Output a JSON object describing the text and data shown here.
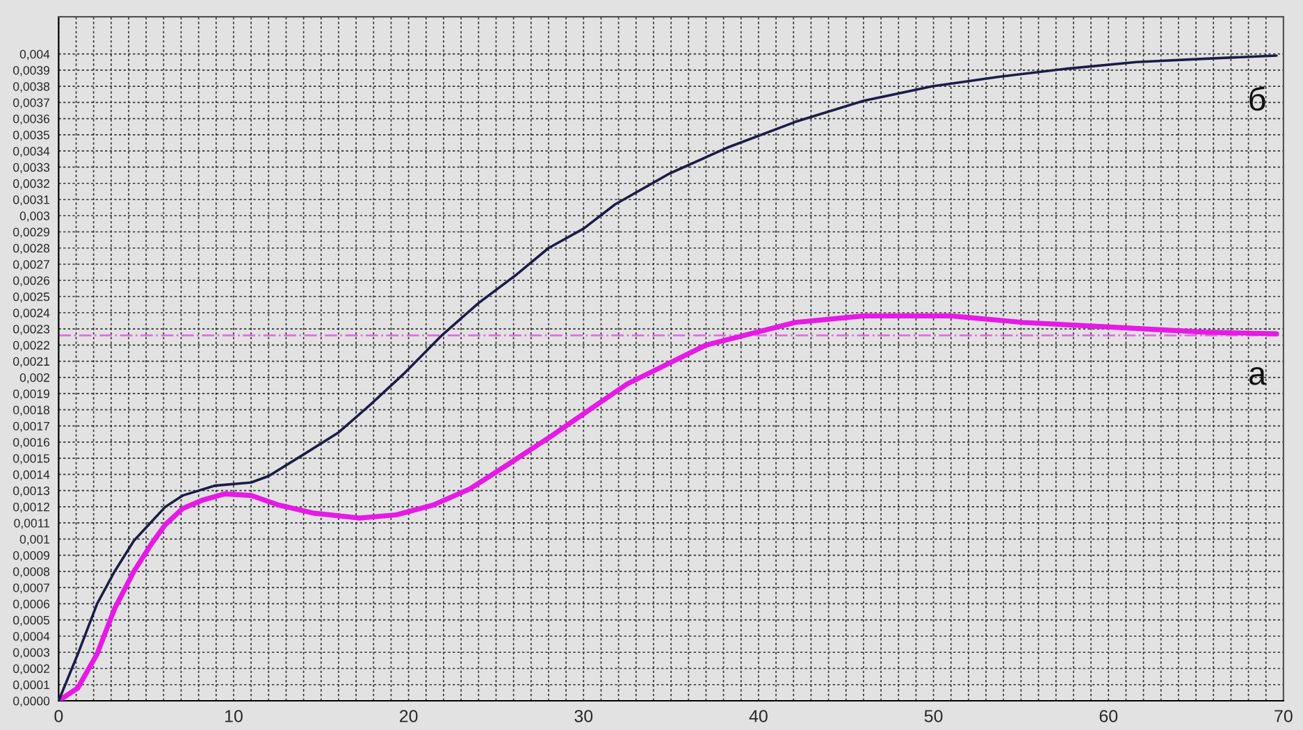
{
  "chart_data": {
    "type": "line",
    "xlim": [
      0,
      70
    ],
    "ylim": [
      0,
      0.00423
    ],
    "xticks": [
      0,
      {
        "value": 1,
        "label": null
      },
      {
        "value": 2,
        "label": null
      },
      {
        "value": 3,
        "label": null
      },
      {
        "value": 4,
        "label": null
      },
      {
        "value": 5,
        "label": null
      },
      {
        "value": 6,
        "label": null
      },
      {
        "value": 7,
        "label": null
      },
      {
        "value": 8,
        "label": null
      },
      {
        "value": 9,
        "label": null
      },
      10,
      {
        "value": 11,
        "label": null
      },
      {
        "value": 12,
        "label": null
      },
      {
        "value": 13,
        "label": null
      },
      {
        "value": 14,
        "label": null
      },
      {
        "value": 15,
        "label": null
      },
      {
        "value": 16,
        "label": null
      },
      {
        "value": 17,
        "label": null
      },
      {
        "value": 18,
        "label": null
      },
      {
        "value": 19,
        "label": null
      },
      20,
      {
        "value": 21,
        "label": null
      },
      {
        "value": 22,
        "label": null
      },
      {
        "value": 23,
        "label": null
      },
      {
        "value": 24,
        "label": null
      },
      {
        "value": 25,
        "label": null
      },
      {
        "value": 26,
        "label": null
      },
      {
        "value": 27,
        "label": null
      },
      {
        "value": 28,
        "label": null
      },
      {
        "value": 29,
        "label": null
      },
      30,
      {
        "value": 31,
        "label": null
      },
      {
        "value": 32,
        "label": null
      },
      {
        "value": 33,
        "label": null
      },
      {
        "value": 34,
        "label": null
      },
      {
        "value": 35,
        "label": null
      },
      {
        "value": 36,
        "label": null
      },
      {
        "value": 37,
        "label": null
      },
      {
        "value": 38,
        "label": null
      },
      {
        "value": 39,
        "label": null
      },
      40,
      {
        "value": 41,
        "label": null
      },
      {
        "value": 42,
        "label": null
      },
      {
        "value": 43,
        "label": null
      },
      {
        "value": 44,
        "label": null
      },
      {
        "value": 45,
        "label": null
      },
      {
        "value": 46,
        "label": null
      },
      {
        "value": 47,
        "label": null
      },
      {
        "value": 48,
        "label": null
      },
      {
        "value": 49,
        "label": null
      },
      50,
      {
        "value": 51,
        "label": null
      },
      {
        "value": 52,
        "label": null
      },
      {
        "value": 53,
        "label": null
      },
      {
        "value": 54,
        "label": null
      },
      {
        "value": 55,
        "label": null
      },
      {
        "value": 56,
        "label": null
      },
      {
        "value": 57,
        "label": null
      },
      {
        "value": 58,
        "label": null
      },
      {
        "value": 59,
        "label": null
      },
      60,
      {
        "value": 61,
        "label": null
      },
      {
        "value": 62,
        "label": null
      },
      {
        "value": 63,
        "label": null
      },
      {
        "value": 64,
        "label": null
      },
      {
        "value": 65,
        "label": null
      },
      {
        "value": 66,
        "label": null
      },
      {
        "value": 67,
        "label": null
      },
      {
        "value": 68,
        "label": null
      },
      {
        "value": 69,
        "label": null
      },
      70
    ],
    "yticks": [
      {
        "value": 0,
        "label": "0,0000"
      },
      {
        "value": 0.0001,
        "label": "0,0001"
      },
      {
        "value": 0.0002,
        "label": "0,0002"
      },
      {
        "value": 0.0003,
        "label": "0,0003"
      },
      {
        "value": 0.0004,
        "label": "0,0004"
      },
      {
        "value": 0.0005,
        "label": "0,0005"
      },
      {
        "value": 0.0006,
        "label": "0,0006"
      },
      {
        "value": 0.0007,
        "label": "0,0007"
      },
      {
        "value": 0.0008,
        "label": "0,0008"
      },
      {
        "value": 0.0009,
        "label": "0,0009"
      },
      {
        "value": 0.001,
        "label": "0,001"
      },
      {
        "value": 0.0011,
        "label": "0,0011"
      },
      {
        "value": 0.0012,
        "label": "0,0012"
      },
      {
        "value": 0.0013,
        "label": "0,0013"
      },
      {
        "value": 0.0014,
        "label": "0,0014"
      },
      {
        "value": 0.0015,
        "label": "0,0015"
      },
      {
        "value": 0.0016,
        "label": "0,0016"
      },
      {
        "value": 0.0017,
        "label": "0,0017"
      },
      {
        "value": 0.0018,
        "label": "0,0018"
      },
      {
        "value": 0.0019,
        "label": "0,0019"
      },
      {
        "value": 0.002,
        "label": "0,002"
      },
      {
        "value": 0.0021,
        "label": "0,0021"
      },
      {
        "value": 0.0022,
        "label": "0,0022"
      },
      {
        "value": 0.0023,
        "label": "0,0023"
      },
      {
        "value": 0.0024,
        "label": "0,0024"
      },
      {
        "value": 0.0025,
        "label": "0,0025"
      },
      {
        "value": 0.0026,
        "label": "0,0026"
      },
      {
        "value": 0.0027,
        "label": "0,0027"
      },
      {
        "value": 0.0028,
        "label": "0,0028"
      },
      {
        "value": 0.0029,
        "label": "0,0029"
      },
      {
        "value": 0.003,
        "label": "0,003"
      },
      {
        "value": 0.0031,
        "label": "0,0031"
      },
      {
        "value": 0.0032,
        "label": "0,0032"
      },
      {
        "value": 0.0033,
        "label": "0,0033"
      },
      {
        "value": 0.0034,
        "label": "0,0034"
      },
      {
        "value": 0.0035,
        "label": "0,0035"
      },
      {
        "value": 0.0036,
        "label": "0,0036"
      },
      {
        "value": 0.0037,
        "label": "0,0037"
      },
      {
        "value": 0.0038,
        "label": "0,0038"
      },
      {
        "value": 0.0039,
        "label": "0,0039"
      },
      {
        "value": 0.004,
        "label": "0,004"
      }
    ],
    "grid": true,
    "marker": "none",
    "line_style": "solid",
    "ref_lines": [
      {
        "axis": "y",
        "value": 0.00226,
        "color": "#e36be3",
        "line_style": "dashdot"
      }
    ],
    "series": [
      {
        "name": "а",
        "color": "#e619e6",
        "x": [
          0,
          1.1,
          2.2,
          3.2,
          4.3,
          5.3,
          6.1,
          7.1,
          8.2,
          9.5,
          11,
          12.6,
          14.6,
          17.2,
          19.3,
          21.4,
          23.5,
          25.8,
          28.2,
          30.2,
          32.5,
          37,
          42.1,
          46,
          51,
          55.1,
          60.3,
          65.4,
          69.6
        ],
        "values": [
          0,
          8e-05,
          0.00029,
          0.00057,
          0.0008,
          0.00097,
          0.00109,
          0.00119,
          0.00124,
          0.00128,
          0.00127,
          0.00121,
          0.00116,
          0.00113,
          0.00115,
          0.00121,
          0.00131,
          0.00147,
          0.00164,
          0.00179,
          0.00196,
          0.0022,
          0.00234,
          0.00238,
          0.00238,
          0.00234,
          0.00231,
          0.00228,
          0.00227
        ]
      },
      {
        "name": "б",
        "color": "#1c1c48",
        "x": [
          0,
          1.1,
          2.2,
          3.2,
          4.3,
          6.1,
          7.1,
          8.9,
          11,
          12,
          14.1,
          16,
          17.8,
          19.8,
          21.9,
          24,
          26.1,
          28,
          30,
          31.8,
          34.9,
          38.2,
          42.1,
          46,
          49.9,
          53.8,
          57.7,
          61.6,
          65.4,
          69.6
        ],
        "values": [
          0,
          0.00029,
          0.0006,
          0.0008,
          0.00099,
          0.0012,
          0.00127,
          0.00133,
          0.00135,
          0.00139,
          0.00153,
          0.00166,
          0.00183,
          0.00203,
          0.00226,
          0.00246,
          0.00263,
          0.0028,
          0.00292,
          0.00307,
          0.00326,
          0.00342,
          0.00358,
          0.00371,
          0.0038,
          0.00386,
          0.00391,
          0.00395,
          0.00397,
          0.00399
        ]
      }
    ]
  }
}
